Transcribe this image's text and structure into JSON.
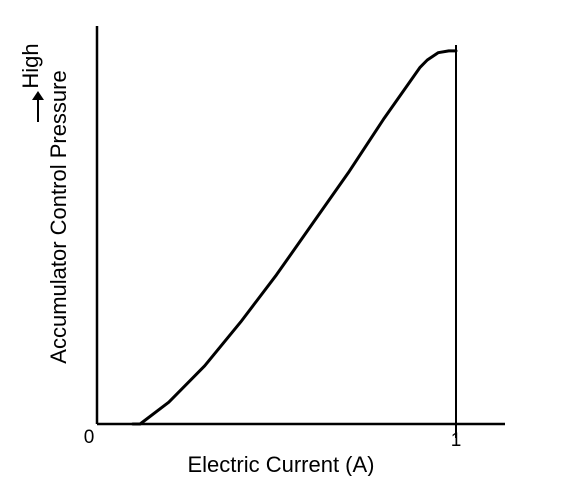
{
  "chart_data": {
    "type": "line",
    "xlabel": "Electric Current (A)",
    "ylabel": "Accumulator Control Pressure",
    "y_direction_label": "High",
    "x_tick_labels": [
      "0",
      "1"
    ],
    "xlim": [
      0,
      1.15
    ],
    "ylim": [
      0,
      1.1
    ],
    "grid": false,
    "series": [
      {
        "x": [
          0.12,
          0.2,
          0.3,
          0.4,
          0.5,
          0.6,
          0.7,
          0.8,
          0.9,
          0.92,
          0.95,
          0.98,
          1.0
        ],
        "y": [
          0.0,
          0.06,
          0.16,
          0.28,
          0.41,
          0.55,
          0.69,
          0.84,
          0.98,
          1.0,
          1.02,
          1.025,
          1.025
        ]
      }
    ],
    "colors": {
      "line": "#000000",
      "axis": "#000000",
      "background": "#ffffff"
    }
  }
}
